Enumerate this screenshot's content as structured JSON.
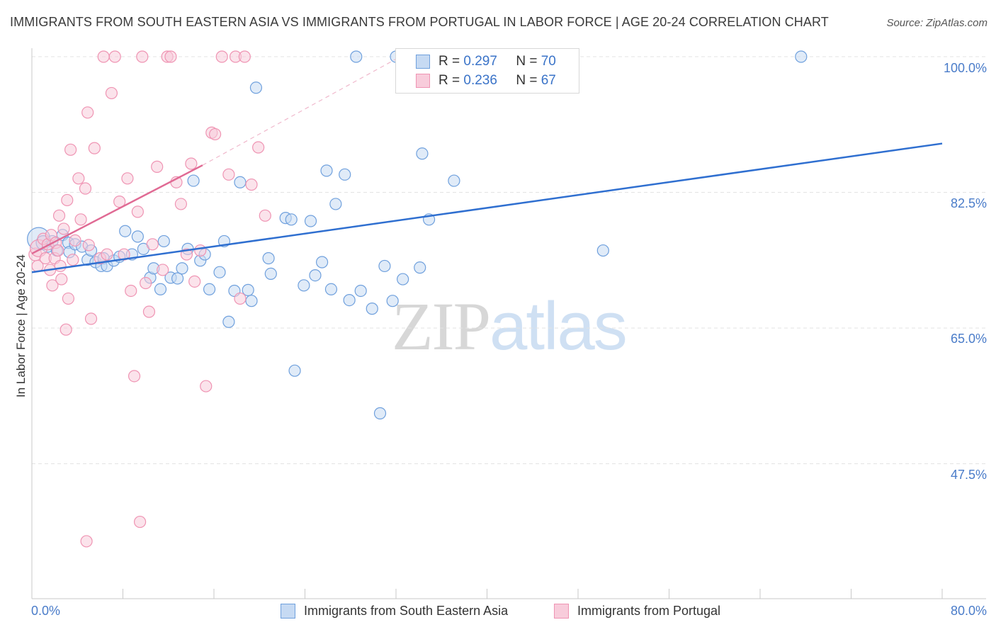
{
  "title": "IMMIGRANTS FROM SOUTH EASTERN ASIA VS IMMIGRANTS FROM PORTUGAL IN LABOR FORCE | AGE 20-24 CORRELATION CHART",
  "source": "Source: ZipAtlas.com",
  "watermark": {
    "zip": "ZIP",
    "atlas": "atlas"
  },
  "legend": [
    {
      "r_label": "R =",
      "r_value": "0.297",
      "n_label": "N =",
      "n_value": "70"
    },
    {
      "r_label": "R =",
      "r_value": "0.236",
      "n_label": "N =",
      "n_value": "67"
    }
  ],
  "chart_data": {
    "type": "scatter",
    "title": "IMMIGRANTS FROM SOUTH EASTERN ASIA VS IMMIGRANTS FROM PORTUGAL IN LABOR FORCE | AGE 20-24 CORRELATION CHART",
    "xlabel": "",
    "ylabel": "In Labor Force | Age 20-24",
    "xlim": [
      0,
      80
    ],
    "ylim": [
      28,
      101.5
    ],
    "x_tick_labels": [
      "0.0%",
      "80.0%"
    ],
    "y_ticks": [
      47.5,
      65.0,
      82.5,
      100.0
    ],
    "y_tick_labels": [
      "47.5%",
      "65.0%",
      "82.5%",
      "100.0%"
    ],
    "grid": true,
    "series": [
      {
        "name": "Immigrants from South Eastern Asia",
        "color": "#6fa0dd",
        "fill": "#c6daf3",
        "line_color": "#2f6fd0",
        "r": 0.297,
        "n": 70,
        "trend": {
          "x": [
            0,
            80
          ],
          "y": [
            72.2,
            88.8
          ]
        },
        "points": [
          [
            0.6,
            76.5,
            16
          ],
          [
            1.0,
            76.0,
            10
          ],
          [
            1.4,
            75.5,
            8
          ],
          [
            1.8,
            76.2,
            8
          ],
          [
            2.2,
            75.0,
            8
          ],
          [
            2.7,
            77.0,
            8
          ],
          [
            3.2,
            76.0,
            8
          ],
          [
            3.3,
            74.8,
            8
          ],
          [
            3.8,
            75.8,
            8
          ],
          [
            4.4,
            75.5,
            8
          ],
          [
            4.9,
            73.8,
            8
          ],
          [
            5.2,
            75.0,
            8
          ],
          [
            5.6,
            73.5,
            8
          ],
          [
            6.1,
            73.0,
            8
          ],
          [
            6.3,
            74.0,
            8
          ],
          [
            6.6,
            73.0,
            8
          ],
          [
            7.2,
            73.7,
            8
          ],
          [
            7.7,
            74.2,
            8
          ],
          [
            8.2,
            77.5,
            8
          ],
          [
            8.8,
            74.5,
            8
          ],
          [
            9.3,
            76.8,
            8
          ],
          [
            9.8,
            75.2,
            8
          ],
          [
            10.4,
            71.5,
            8
          ],
          [
            10.7,
            72.7,
            8
          ],
          [
            11.3,
            70.0,
            8
          ],
          [
            11.6,
            76.2,
            8
          ],
          [
            12.2,
            71.5,
            8
          ],
          [
            12.8,
            71.4,
            8
          ],
          [
            13.2,
            72.7,
            8
          ],
          [
            13.7,
            75.2,
            8
          ],
          [
            14.2,
            84.0,
            8
          ],
          [
            14.8,
            73.7,
            8
          ],
          [
            15.2,
            74.5,
            8
          ],
          [
            15.6,
            70.0,
            8
          ],
          [
            16.5,
            72.2,
            8
          ],
          [
            16.9,
            76.2,
            8
          ],
          [
            17.3,
            65.8,
            8
          ],
          [
            17.8,
            69.8,
            8
          ],
          [
            18.3,
            83.8,
            8
          ],
          [
            19.0,
            69.9,
            8
          ],
          [
            19.3,
            68.5,
            8
          ],
          [
            19.7,
            96.0,
            8
          ],
          [
            20.8,
            74.0,
            8
          ],
          [
            21.0,
            72.0,
            8
          ],
          [
            22.3,
            79.2,
            8
          ],
          [
            22.8,
            79.0,
            8
          ],
          [
            23.1,
            59.5,
            8
          ],
          [
            23.9,
            70.5,
            8
          ],
          [
            24.5,
            78.8,
            8
          ],
          [
            24.9,
            71.8,
            8
          ],
          [
            25.5,
            73.5,
            8
          ],
          [
            25.9,
            85.3,
            8
          ],
          [
            26.3,
            70.0,
            8
          ],
          [
            26.7,
            81.0,
            8
          ],
          [
            27.5,
            84.8,
            8
          ],
          [
            27.9,
            68.6,
            8
          ],
          [
            28.5,
            100.0,
            8
          ],
          [
            28.9,
            69.8,
            8
          ],
          [
            29.9,
            67.5,
            8
          ],
          [
            30.6,
            54.0,
            8
          ],
          [
            31.0,
            73.0,
            8
          ],
          [
            31.7,
            68.5,
            8
          ],
          [
            32.0,
            100.0,
            8
          ],
          [
            32.6,
            71.3,
            8
          ],
          [
            34.1,
            72.8,
            8
          ],
          [
            34.3,
            87.5,
            8
          ],
          [
            34.9,
            79.0,
            8
          ],
          [
            37.1,
            84.0,
            8
          ],
          [
            50.2,
            75.0,
            8
          ],
          [
            67.6,
            100.0,
            8
          ]
        ]
      },
      {
        "name": "Immigrants from Portugal",
        "color": "#ef94b3",
        "fill": "#f8ccdb",
        "line_color": "#e06a94",
        "r": 0.236,
        "n": 67,
        "trend": {
          "x": [
            0,
            15
          ],
          "y": [
            74.6,
            86.0
          ]
        },
        "trend_dashed": {
          "x": [
            15,
            33
          ],
          "y": [
            86.0,
            100.5
          ]
        },
        "points": [
          [
            0.3,
            74.5,
            9
          ],
          [
            0.5,
            73.0,
            8
          ],
          [
            0.6,
            75.3,
            12
          ],
          [
            1.0,
            76.5,
            8
          ],
          [
            1.2,
            74.0,
            8
          ],
          [
            1.4,
            75.8,
            8
          ],
          [
            1.6,
            72.5,
            8
          ],
          [
            1.7,
            77.0,
            8
          ],
          [
            1.8,
            70.5,
            8
          ],
          [
            2.0,
            74.0,
            8
          ],
          [
            2.1,
            76.0,
            8
          ],
          [
            2.3,
            75.0,
            8
          ],
          [
            2.5,
            73.0,
            8
          ],
          [
            2.6,
            71.3,
            8
          ],
          [
            2.8,
            77.8,
            8
          ],
          [
            3.1,
            81.5,
            8
          ],
          [
            3.2,
            68.8,
            8
          ],
          [
            3.4,
            88.0,
            8
          ],
          [
            3.6,
            73.8,
            8
          ],
          [
            3.8,
            76.3,
            8
          ],
          [
            4.1,
            84.3,
            8
          ],
          [
            4.3,
            79.0,
            8
          ],
          [
            4.7,
            83.0,
            8
          ],
          [
            4.9,
            92.8,
            8
          ],
          [
            5.0,
            75.7,
            8
          ],
          [
            5.2,
            66.2,
            8
          ],
          [
            5.5,
            88.2,
            8
          ],
          [
            6.0,
            74.0,
            8
          ],
          [
            6.3,
            100.0,
            8
          ],
          [
            6.6,
            74.5,
            8
          ],
          [
            7.0,
            95.3,
            8
          ],
          [
            7.3,
            100.0,
            8
          ],
          [
            7.7,
            81.3,
            8
          ],
          [
            8.1,
            74.5,
            8
          ],
          [
            8.4,
            84.3,
            8
          ],
          [
            8.7,
            69.8,
            8
          ],
          [
            9.0,
            58.8,
            8
          ],
          [
            9.3,
            80.0,
            8
          ],
          [
            9.7,
            100.0,
            8
          ],
          [
            10.0,
            70.8,
            8
          ],
          [
            10.3,
            67.1,
            8
          ],
          [
            10.6,
            75.8,
            8
          ],
          [
            11.0,
            85.8,
            8
          ],
          [
            11.5,
            72.5,
            8
          ],
          [
            11.9,
            100.0,
            8
          ],
          [
            12.2,
            100.0,
            8
          ],
          [
            12.7,
            83.8,
            8
          ],
          [
            13.1,
            81.0,
            8
          ],
          [
            13.6,
            74.5,
            8
          ],
          [
            14.0,
            86.2,
            8
          ],
          [
            14.3,
            71.0,
            8
          ],
          [
            14.8,
            75.0,
            8
          ],
          [
            15.3,
            57.5,
            8
          ],
          [
            15.8,
            90.2,
            8
          ],
          [
            16.1,
            90.0,
            8
          ],
          [
            16.7,
            100.0,
            8
          ],
          [
            17.3,
            84.8,
            8
          ],
          [
            17.9,
            100.0,
            8
          ],
          [
            18.3,
            68.8,
            8
          ],
          [
            18.7,
            100.0,
            8
          ],
          [
            19.3,
            83.5,
            8
          ],
          [
            19.9,
            88.3,
            8
          ],
          [
            20.5,
            79.5,
            8
          ],
          [
            4.8,
            37.5,
            8
          ],
          [
            3.0,
            64.8,
            8
          ],
          [
            9.5,
            40.0,
            8
          ],
          [
            2.4,
            79.5,
            8
          ]
        ]
      }
    ]
  }
}
